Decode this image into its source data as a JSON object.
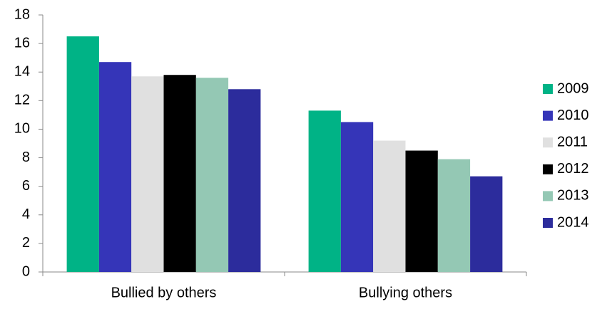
{
  "chart_data": {
    "type": "bar",
    "categories": [
      "Bullied by others",
      "Bullying others"
    ],
    "series": [
      {
        "name": "2009",
        "color": "#00b386",
        "values": [
          16.5,
          11.3
        ]
      },
      {
        "name": "2010",
        "color": "#3535b8",
        "values": [
          14.7,
          10.5
        ]
      },
      {
        "name": "2011",
        "color": "#e0e0e0",
        "values": [
          13.7,
          9.2
        ]
      },
      {
        "name": "2012",
        "color": "#000000",
        "values": [
          13.8,
          8.5
        ]
      },
      {
        "name": "2013",
        "color": "#94c8b4",
        "values": [
          13.6,
          7.9
        ]
      },
      {
        "name": "2014",
        "color": "#2c2c9c",
        "values": [
          12.8,
          6.7
        ]
      }
    ],
    "ylim": [
      0,
      18
    ],
    "yticks": [
      0,
      2,
      4,
      6,
      8,
      10,
      12,
      14,
      16,
      18
    ],
    "grid": false,
    "legend": "right"
  }
}
